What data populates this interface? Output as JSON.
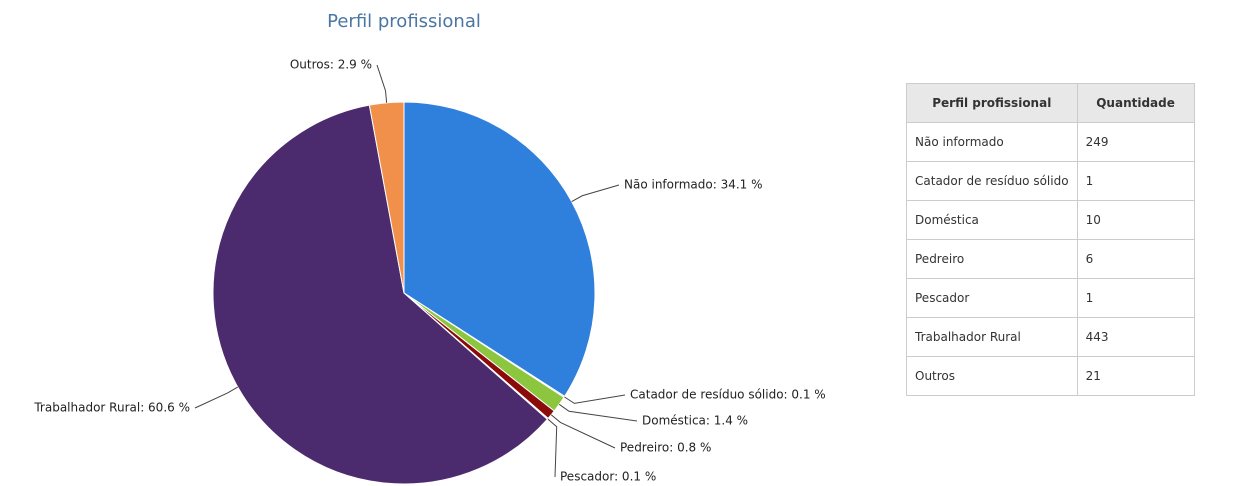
{
  "chart_data": {
    "type": "pie",
    "title": "Perfil profissional",
    "categories": [
      "Não informado",
      "Catador de resíduo sólido",
      "Doméstica",
      "Pedreiro",
      "Pescador",
      "Trabalhador Rural",
      "Outros"
    ],
    "values": [
      34.1,
      0.1,
      1.4,
      0.8,
      0.1,
      60.6,
      2.9
    ],
    "value_labels": [
      "Não informado: 34.1 %",
      "Catador de resíduo sólido: 0.1 %",
      "Doméstica: 1.4 %",
      "Pedreiro: 0.8 %",
      "Pescador: 0.1 %",
      "Trabalhador Rural: 60.6 %",
      "Outros: 2.9 %"
    ],
    "colors": [
      "#2f80dc",
      "#c8c8c8",
      "#8cc63f",
      "#8b0a0a",
      "#d9d9d9",
      "#4b2a6e",
      "#f0904a"
    ]
  },
  "table": {
    "headers": [
      "Perfil profissional",
      "Quantidade"
    ],
    "quantities": [
      249,
      1,
      10,
      6,
      1,
      443,
      21
    ]
  }
}
